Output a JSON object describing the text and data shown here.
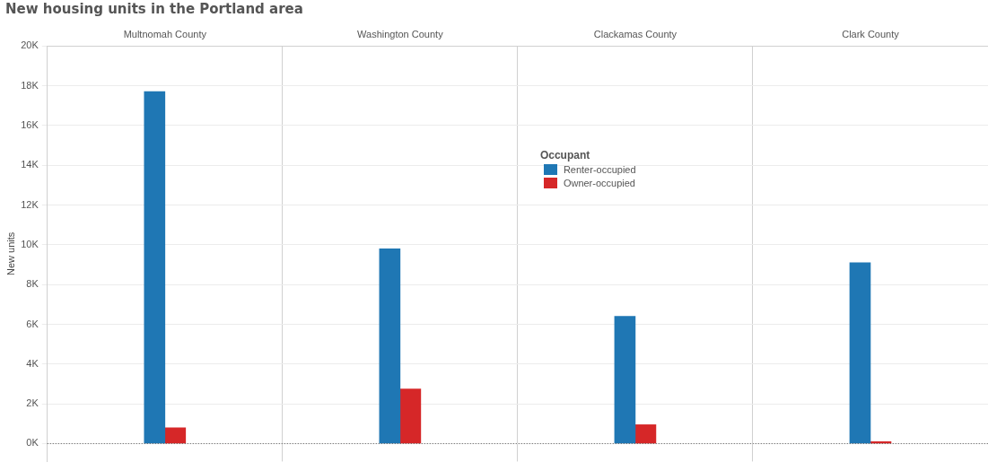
{
  "chart_data": {
    "type": "bar",
    "title": "New housing units in the Portland area",
    "ylabel": "New units",
    "legend_title": "Occupant",
    "categories": [
      "Multnomah County",
      "Washington County",
      "Clackamas County",
      "Clark County"
    ],
    "series": [
      {
        "name": "Renter-occupied",
        "color": "#1f77b4",
        "values": [
          17700,
          9800,
          6400,
          9100
        ]
      },
      {
        "name": "Owner-occupied",
        "color": "#d62728",
        "values": [
          800,
          2750,
          950,
          100
        ]
      }
    ],
    "ylim": [
      -900,
      20000
    ],
    "yticks": [
      {
        "value": 0,
        "label": "0K"
      },
      {
        "value": 2000,
        "label": "2K"
      },
      {
        "value": 4000,
        "label": "4K"
      },
      {
        "value": 6000,
        "label": "6K"
      },
      {
        "value": 8000,
        "label": "8K"
      },
      {
        "value": 10000,
        "label": "10K"
      },
      {
        "value": 12000,
        "label": "12K"
      },
      {
        "value": 14000,
        "label": "14K"
      },
      {
        "value": 16000,
        "label": "16K"
      },
      {
        "value": 18000,
        "label": "18K"
      },
      {
        "value": 20000,
        "label": "20K"
      }
    ],
    "ref_lines": [
      {
        "axis": "y",
        "value": 0,
        "line_style": "dotted",
        "color": "#555555"
      }
    ],
    "grid": true,
    "legend": "top"
  }
}
